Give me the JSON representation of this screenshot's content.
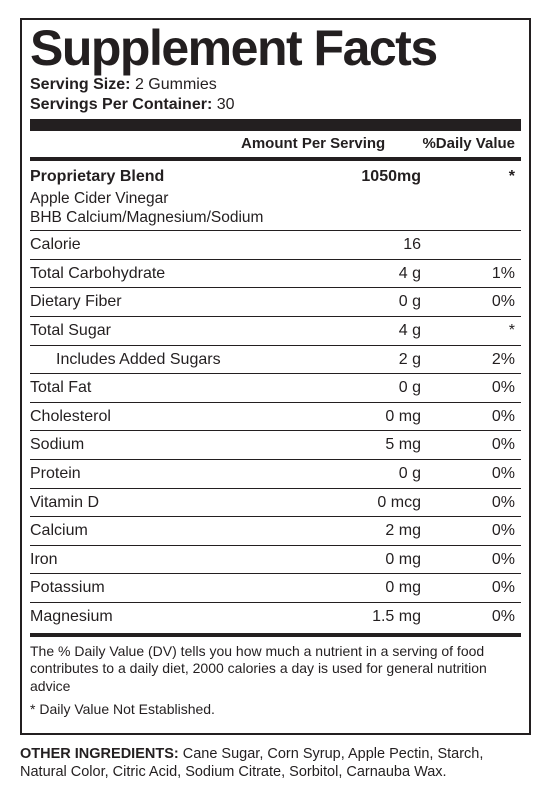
{
  "title": "Supplement Facts",
  "serving_size_label": "Serving Size:",
  "serving_size_value": "2 Gummies",
  "servings_per_label": "Servings Per Container:",
  "servings_per_value": "30",
  "header": {
    "amount": "Amount Per Serving",
    "dv": "%Daily Value"
  },
  "blend": {
    "name": "Proprietary Blend",
    "amount": "1050mg",
    "dv": "*",
    "lines": [
      "Apple Cider Vinegar",
      "BHB Calcium/Magnesium/Sodium"
    ]
  },
  "rows": [
    {
      "name": "Calorie",
      "amount": "16",
      "dv": ""
    },
    {
      "name": "Total Carbohydrate",
      "amount": "4 g",
      "dv": "1%"
    },
    {
      "name": "Dietary Fiber",
      "amount": "0 g",
      "dv": "0%"
    },
    {
      "name": "Total Sugar",
      "amount": "4 g",
      "dv": "*"
    },
    {
      "name": "Includes Added Sugars",
      "amount": "2 g",
      "dv": "2%",
      "indent": true
    },
    {
      "name": "Total Fat",
      "amount": "0 g",
      "dv": "0%"
    },
    {
      "name": "Cholesterol",
      "amount": "0 mg",
      "dv": "0%"
    },
    {
      "name": "Sodium",
      "amount": "5 mg",
      "dv": "0%"
    },
    {
      "name": "Protein",
      "amount": "0 g",
      "dv": "0%"
    },
    {
      "name": "Vitamin D",
      "amount": "0 mcg",
      "dv": "0%"
    },
    {
      "name": "Calcium",
      "amount": "2 mg",
      "dv": "0%"
    },
    {
      "name": "Iron",
      "amount": "0 mg",
      "dv": "0%"
    },
    {
      "name": "Potassium",
      "amount": "0 mg",
      "dv": "0%"
    },
    {
      "name": "Magnesium",
      "amount": "1.5 mg",
      "dv": "0%"
    }
  ],
  "footnote_dv": "The % Daily Value (DV) tells you how much a nutrient in a serving of food contributes to a daily diet, 2000 calories a day is used for general nutrition advice",
  "footnote_star": "* Daily Value Not Established.",
  "other_label": "OTHER INGREDIENTS:",
  "other_text": " Cane Sugar, Corn Syrup, Apple Pectin, Starch, Natural Color, Citric Acid, Sodium Citrate, Sorbitol, Carnauba Wax."
}
